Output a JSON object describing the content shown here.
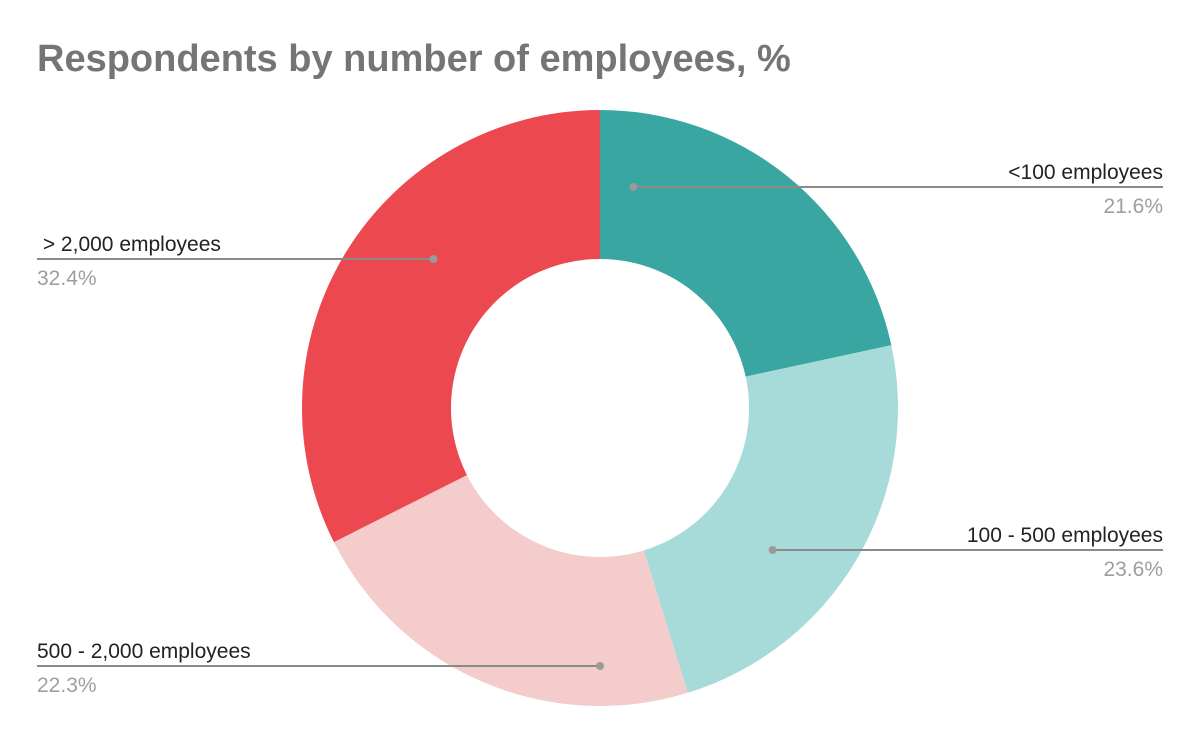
{
  "chart_data": {
    "type": "pie",
    "title": "Respondents by number of employees, %",
    "donut": true,
    "slices": [
      {
        "label": "<100 employees",
        "value": 21.6,
        "value_label": "21.6%",
        "color": "#3aa6a2"
      },
      {
        "label": "100 - 500 employees",
        "value": 23.6,
        "value_label": "23.6%",
        "color": "#a7dbd9"
      },
      {
        "label": "500 - 2,000 employees",
        "value": 22.3,
        "value_label": "22.3%",
        "color": "#f4cccc"
      },
      {
        "label": " > 2,000 employees",
        "value": 32.4,
        "value_label": "32.4%",
        "color": "#eb4850"
      }
    ],
    "start_angle": "top",
    "direction": "clockwise"
  }
}
